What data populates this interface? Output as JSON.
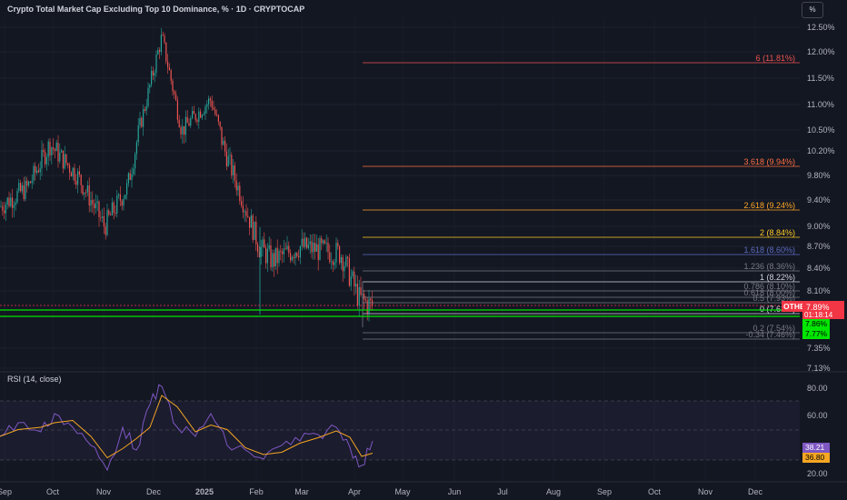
{
  "header": {
    "title": "Crypto Total Market Cap Excluding Top 10 Dominance, % · 1D · CRYPTOCAP",
    "unit_button": "%"
  },
  "colors": {
    "background": "#131722",
    "up": "#26a69a",
    "down": "#ef5350",
    "rsi_line": "#7e57c2",
    "rsi_ma": "#f5a623",
    "green_line": "#00e600",
    "price_badge": "#f23645"
  },
  "price_axis": {
    "ticks": [
      "12.50%",
      "12.00%",
      "11.50%",
      "11.00%",
      "10.50%",
      "10.20%",
      "9.80%",
      "9.40%",
      "9.00%",
      "8.70%",
      "8.40%",
      "8.10%",
      "7.35%",
      "7.13%"
    ],
    "badges": {
      "symbol": "OTHERS.D",
      "price": "7.89%",
      "countdown": "01:18:14",
      "level_1": "7.86%",
      "level_2": "7.77%"
    }
  },
  "fib_levels": [
    {
      "label": "6 (11.81%)",
      "color": "#ef5350"
    },
    {
      "label": "3.618 (9.94%)",
      "color": "#ff7043"
    },
    {
      "label": "2.618 (9.24%)",
      "color": "#ffa726"
    },
    {
      "label": "2 (8.84%)",
      "color": "#ffca28"
    },
    {
      "label": "1.618 (8.60%)",
      "color": "#5c6bc0"
    },
    {
      "label": "1.236 (8.36%)",
      "color": "#787b86"
    },
    {
      "label": "1 (8.22%)",
      "color": "#d1d4dc"
    },
    {
      "label": "0.786 (8.10%)",
      "color": "#787b86"
    },
    {
      "label": "0.618 (8.00%)",
      "color": "#787b86"
    },
    {
      "label": "0.5 (7.93%)",
      "color": "#787b86"
    },
    {
      "label": "0 (7.63%)",
      "color": "#d1d4dc"
    },
    {
      "label": "0.2 (7.54%)",
      "color": "#787b86"
    },
    {
      "label": "-0.34 (7.46%)",
      "color": "#787b86"
    }
  ],
  "rsi": {
    "label": "RSI (14, close)",
    "ticks": [
      "80.00",
      "60.00",
      "20.00"
    ],
    "value": "38.21",
    "ma_value": "36.80"
  },
  "time_axis": {
    "labels": [
      "Sep",
      "Oct",
      "Nov",
      "Dec",
      "2025",
      "Feb",
      "Mar",
      "Apr",
      "May",
      "Jun",
      "Jul",
      "Aug",
      "Sep",
      "Oct",
      "Nov",
      "Dec"
    ]
  },
  "chart_data": {
    "type": "candlestick",
    "title": "Crypto Total Market Cap Excluding Top 10 Dominance, % · 1D · CRYPTOCAP",
    "timeframe": "1D",
    "y_unit": "%",
    "anchors": [
      {
        "t": "Sep",
        "v": 9.3
      },
      {
        "t": "mid-Sep",
        "v": 9.6
      },
      {
        "t": "Oct",
        "v": 10.3
      },
      {
        "t": "mid-Oct",
        "v": 9.8
      },
      {
        "t": "Nov",
        "v": 9.0
      },
      {
        "t": "mid-Nov",
        "v": 9.6
      },
      {
        "t": "late-Nov",
        "v": 11.0
      },
      {
        "t": "Dec",
        "v": 12.3
      },
      {
        "t": "mid-Dec",
        "v": 10.5
      },
      {
        "t": "late-Dec",
        "v": 11.1
      },
      {
        "t": "2025",
        "v": 10.3
      },
      {
        "t": "mid-Jan",
        "v": 9.6
      },
      {
        "t": "Feb",
        "v": 8.7
      },
      {
        "t": "mid-Feb",
        "v": 8.5
      },
      {
        "t": "Mar",
        "v": 8.7
      },
      {
        "t": "late-Mar",
        "v": 8.6
      },
      {
        "t": "Apr",
        "v": 8.0
      },
      {
        "t": "Apr-latest",
        "v": 7.89
      }
    ],
    "last_price": 7.89,
    "rsi_last": 38.21,
    "rsi_ma_last": 36.8
  }
}
